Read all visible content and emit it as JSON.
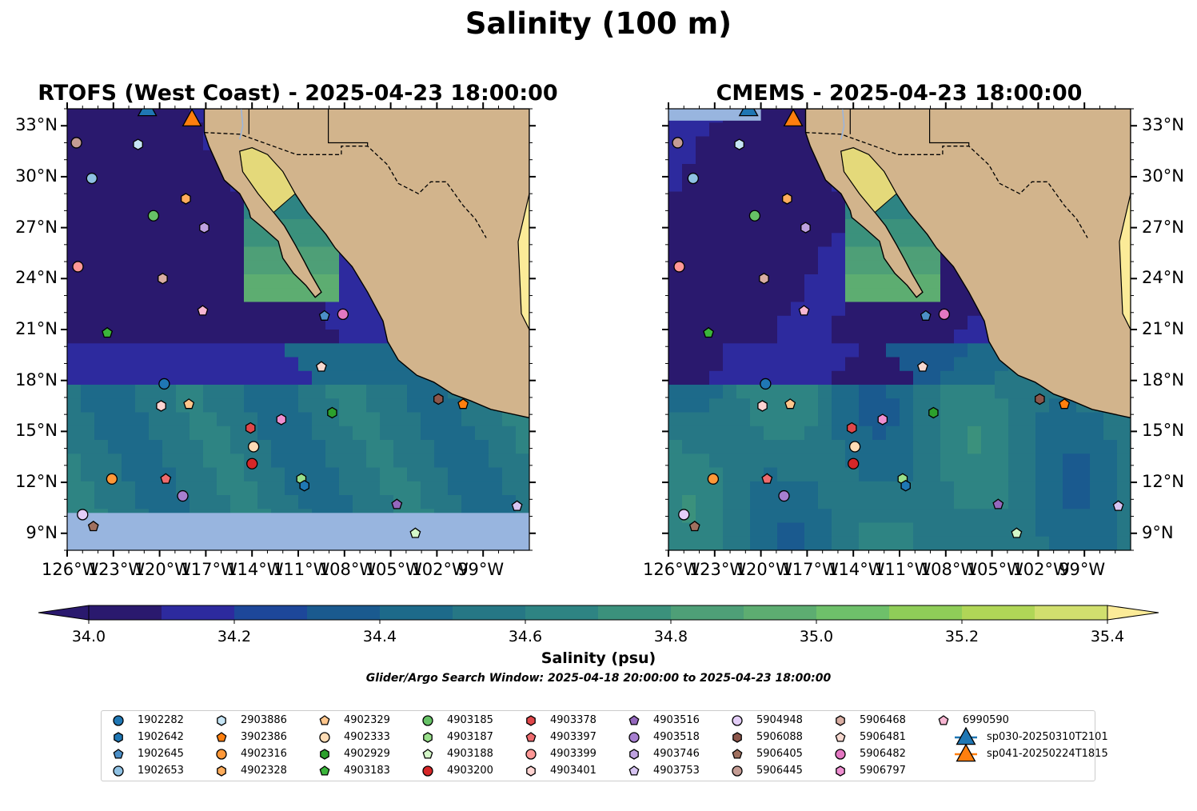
{
  "title": "Salinity (100 m)",
  "panels": [
    {
      "title": "RTOFS (West Coast) - 2025-04-23 18:00:00"
    },
    {
      "title": "CMEMS - 2025-04-23 18:00:00"
    }
  ],
  "map": {
    "lon_range": [
      -126,
      -96
    ],
    "lat_range": [
      8,
      34
    ],
    "lon_ticks": [
      "126°W",
      "123°W",
      "120°W",
      "117°W",
      "114°W",
      "111°W",
      "108°W",
      "105°W",
      "102°W",
      "99°W"
    ],
    "lat_ticks": [
      "9°N",
      "12°N",
      "15°N",
      "18°N",
      "21°N",
      "24°N",
      "27°N",
      "30°N",
      "33°N"
    ],
    "land_color": "#d2b48c",
    "water_color": "#98b5df",
    "deep_color": "#2a186c"
  },
  "colorbar": {
    "label": "Salinity (psu)",
    "ticks": [
      "34.0",
      "34.2",
      "34.4",
      "34.6",
      "34.8",
      "35.0",
      "35.2",
      "35.4"
    ],
    "colors": [
      "#2a196e",
      "#2d2a9e",
      "#1d479a",
      "#1a5a8f",
      "#1d6a8a",
      "#267785",
      "#2e8483",
      "#3b917c",
      "#4e9f77",
      "#5dad71",
      "#6ec06a",
      "#8fcd58",
      "#b0d657",
      "#d1df6e",
      "#fbeb98"
    ],
    "extend": "both"
  },
  "search_window_text": "Glider/Argo Search Window: 2025-04-18 20:00:00 to 2025-04-23 18:00:00",
  "legend": [
    {
      "label": "1902282",
      "marker": "circle",
      "color": "#1f77b4"
    },
    {
      "label": "1902642",
      "marker": "hexagon",
      "color": "#1f77b4"
    },
    {
      "label": "1902645",
      "marker": "pentagon",
      "color": "#4c8fc7"
    },
    {
      "label": "1902653",
      "marker": "circle",
      "color": "#8fc1e3"
    },
    {
      "label": "2903886",
      "marker": "hexagon",
      "color": "#c6e5f5"
    },
    {
      "label": "3902386",
      "marker": "pentagon",
      "color": "#ff7f0e"
    },
    {
      "label": "4902316",
      "marker": "circle",
      "color": "#ff9838"
    },
    {
      "label": "4902328",
      "marker": "hexagon",
      "color": "#ffad5c"
    },
    {
      "label": "4902329",
      "marker": "pentagon",
      "color": "#ffc68c"
    },
    {
      "label": "4902333",
      "marker": "circle",
      "color": "#ffdcb5"
    },
    {
      "label": "4902929",
      "marker": "hexagon",
      "color": "#2ca02c"
    },
    {
      "label": "4903183",
      "marker": "pentagon",
      "color": "#3bb53b"
    },
    {
      "label": "4903185",
      "marker": "circle",
      "color": "#66c266"
    },
    {
      "label": "4903187",
      "marker": "hexagon",
      "color": "#98df8a"
    },
    {
      "label": "4903188",
      "marker": "pentagon",
      "color": "#d4f7c8"
    },
    {
      "label": "4903200",
      "marker": "circle",
      "color": "#d62728"
    },
    {
      "label": "4903378",
      "marker": "hexagon",
      "color": "#e0474a"
    },
    {
      "label": "4903397",
      "marker": "pentagon",
      "color": "#ee6b6e"
    },
    {
      "label": "4903399",
      "marker": "circle",
      "color": "#ff9896"
    },
    {
      "label": "4903401",
      "marker": "hexagon",
      "color": "#ffd4d2"
    },
    {
      "label": "4903516",
      "marker": "pentagon",
      "color": "#9467bd"
    },
    {
      "label": "4903518",
      "marker": "circle",
      "color": "#a77fd0"
    },
    {
      "label": "4903746",
      "marker": "hexagon",
      "color": "#bfa2e0"
    },
    {
      "label": "4903753",
      "marker": "pentagon",
      "color": "#d7c4f2"
    },
    {
      "label": "5904948",
      "marker": "circle",
      "color": "#e3cdf7"
    },
    {
      "label": "5906088",
      "marker": "hexagon",
      "color": "#8c564b"
    },
    {
      "label": "5906405",
      "marker": "pentagon",
      "color": "#a0705f"
    },
    {
      "label": "5906445",
      "marker": "circle",
      "color": "#c49c94"
    },
    {
      "label": "5906468",
      "marker": "hexagon",
      "color": "#d9aea3"
    },
    {
      "label": "5906481",
      "marker": "pentagon",
      "color": "#f7d9d0"
    },
    {
      "label": "5906482",
      "marker": "circle",
      "color": "#e377c2"
    },
    {
      "label": "5906797",
      "marker": "hexagon",
      "color": "#ee8fd1"
    },
    {
      "label": "6990590",
      "marker": "pentagon",
      "color": "#f7b6d2"
    },
    {
      "label": "sp030-20250310T2101",
      "marker": "triangle",
      "color": "#1f77b4"
    },
    {
      "label": "sp041-20250224T1815",
      "marker": "triangle",
      "color": "#ff7f0e"
    }
  ],
  "floats": [
    {
      "id": "5906445",
      "lon": -125.4,
      "lat": 32.0
    },
    {
      "id": "2903886",
      "lon": -121.4,
      "lat": 31.9
    },
    {
      "id": "1902653",
      "lon": -124.4,
      "lat": 29.9
    },
    {
      "id": "4902328",
      "lon": -118.3,
      "lat": 28.7
    },
    {
      "id": "4903185",
      "lon": -120.4,
      "lat": 27.7
    },
    {
      "id": "4903746",
      "lon": -117.1,
      "lat": 27.0
    },
    {
      "id": "4903399",
      "lon": -125.3,
      "lat": 24.7
    },
    {
      "id": "5906468",
      "lon": -119.8,
      "lat": 24.0
    },
    {
      "id": "6990590",
      "lon": -117.2,
      "lat": 22.1
    },
    {
      "id": "1902645",
      "lon": -109.3,
      "lat": 21.8
    },
    {
      "id": "5906482",
      "lon": -108.1,
      "lat": 21.9
    },
    {
      "id": "4903183",
      "lon": -123.4,
      "lat": 20.8
    },
    {
      "id": "5906481",
      "lon": -109.5,
      "lat": 18.8
    },
    {
      "id": "1902282",
      "lon": -119.7,
      "lat": 17.8
    },
    {
      "id": "5906088",
      "lon": -101.9,
      "lat": 16.9
    },
    {
      "id": "3902386",
      "lon": -100.3,
      "lat": 16.6
    },
    {
      "id": "4903401",
      "lon": -119.9,
      "lat": 16.5
    },
    {
      "id": "4902329",
      "lon": -118.1,
      "lat": 16.6
    },
    {
      "id": "4902929",
      "lon": -108.8,
      "lat": 16.1
    },
    {
      "id": "4903378",
      "lon": -114.1,
      "lat": 15.2
    },
    {
      "id": "5906797",
      "lon": -112.1,
      "lat": 15.7
    },
    {
      "id": "4902333",
      "lon": -113.9,
      "lat": 14.1
    },
    {
      "id": "4903200",
      "lon": -114.0,
      "lat": 13.1
    },
    {
      "id": "4902316",
      "lon": -123.1,
      "lat": 12.2
    },
    {
      "id": "4903397",
      "lon": -119.6,
      "lat": 12.2
    },
    {
      "id": "4903187",
      "lon": -110.8,
      "lat": 12.2
    },
    {
      "id": "1902642",
      "lon": -110.6,
      "lat": 11.8
    },
    {
      "id": "4903518",
      "lon": -118.5,
      "lat": 11.2
    },
    {
      "id": "4903516",
      "lon": -104.6,
      "lat": 10.7
    },
    {
      "id": "4903753",
      "lon": -96.8,
      "lat": 10.6
    },
    {
      "id": "5904948",
      "lon": -125.0,
      "lat": 10.1
    },
    {
      "id": "5906405",
      "lon": -124.3,
      "lat": 9.4
    },
    {
      "id": "4903188",
      "lon": -103.4,
      "lat": 9.0
    }
  ],
  "gliders": [
    {
      "id": "sp030-20250310T2101",
      "lon": -120.8,
      "lat": 34.0
    },
    {
      "id": "sp041-20250224T1815",
      "lon": -117.9,
      "lat": 33.4
    }
  ]
}
